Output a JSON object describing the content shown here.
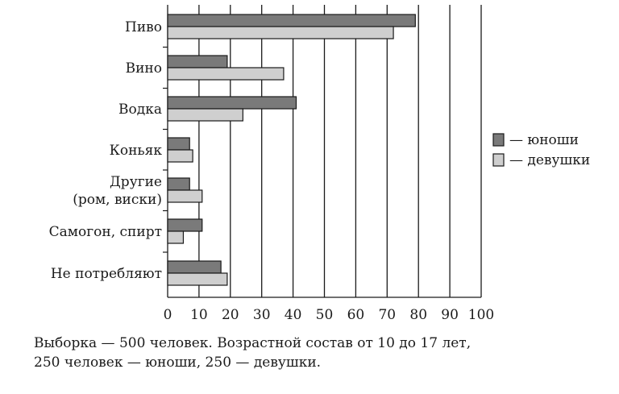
{
  "chart_data": {
    "type": "bar",
    "orientation": "horizontal",
    "categories": [
      [
        "Пиво"
      ],
      [
        "Вино"
      ],
      [
        "Водка"
      ],
      [
        "Коньяк"
      ],
      [
        "Другие",
        "(ром, виски)"
      ],
      [
        "Самогон, спирт"
      ],
      [
        "Не потребляют"
      ]
    ],
    "series": [
      {
        "name": "— юноши",
        "color": "#7a7a7a",
        "values": [
          79,
          19,
          41,
          7,
          7,
          11,
          17
        ]
      },
      {
        "name": "— девушки",
        "color": "#cfcfcf",
        "values": [
          72,
          37,
          24,
          8,
          11,
          5,
          19
        ]
      }
    ],
    "xlim": [
      0,
      100
    ],
    "xticks": [
      0,
      10,
      20,
      30,
      40,
      50,
      60,
      70,
      80,
      90,
      100
    ],
    "grid": "vertical",
    "legend_position": "right"
  },
  "caption": {
    "line1": "Выборка — 500 человек. Возрастной состав от 10 до 17 лет,",
    "line2": "250 человек — юноши, 250 — девушки."
  }
}
